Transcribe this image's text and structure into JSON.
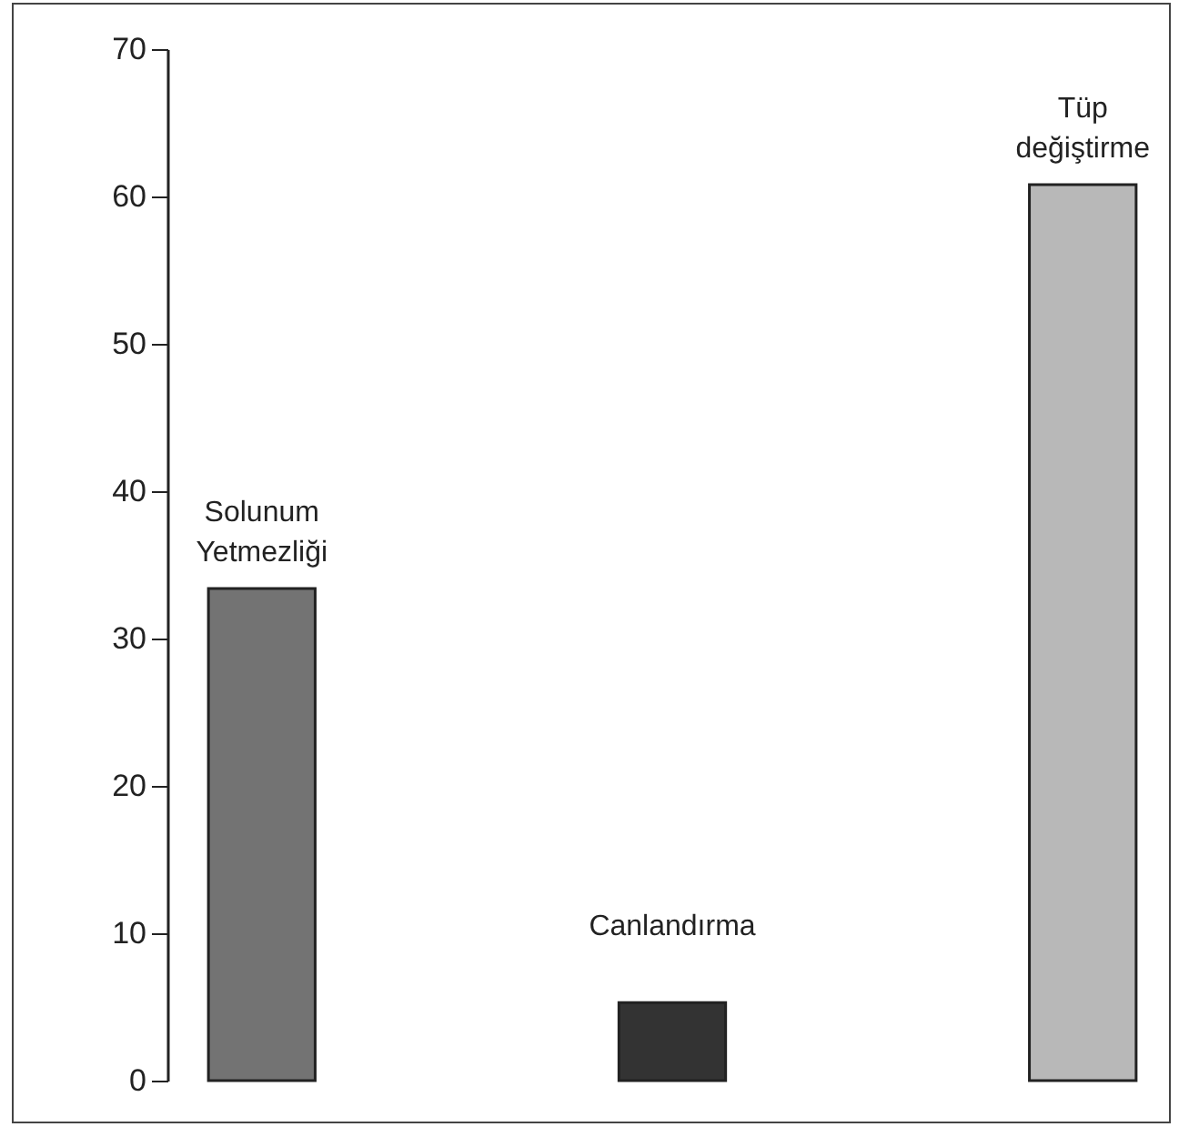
{
  "chart_data": {
    "type": "bar",
    "categories": [
      "Solunum Yetmezliği",
      "Canlandırma",
      "Tüp değiştirme"
    ],
    "values": [
      33.4,
      5.3,
      60.8
    ],
    "colors": [
      "#737373",
      "#333333",
      "#b8b8b8"
    ],
    "ylim": [
      0,
      70
    ],
    "yticks": [
      0,
      10,
      20,
      30,
      40,
      50,
      60,
      70
    ]
  }
}
